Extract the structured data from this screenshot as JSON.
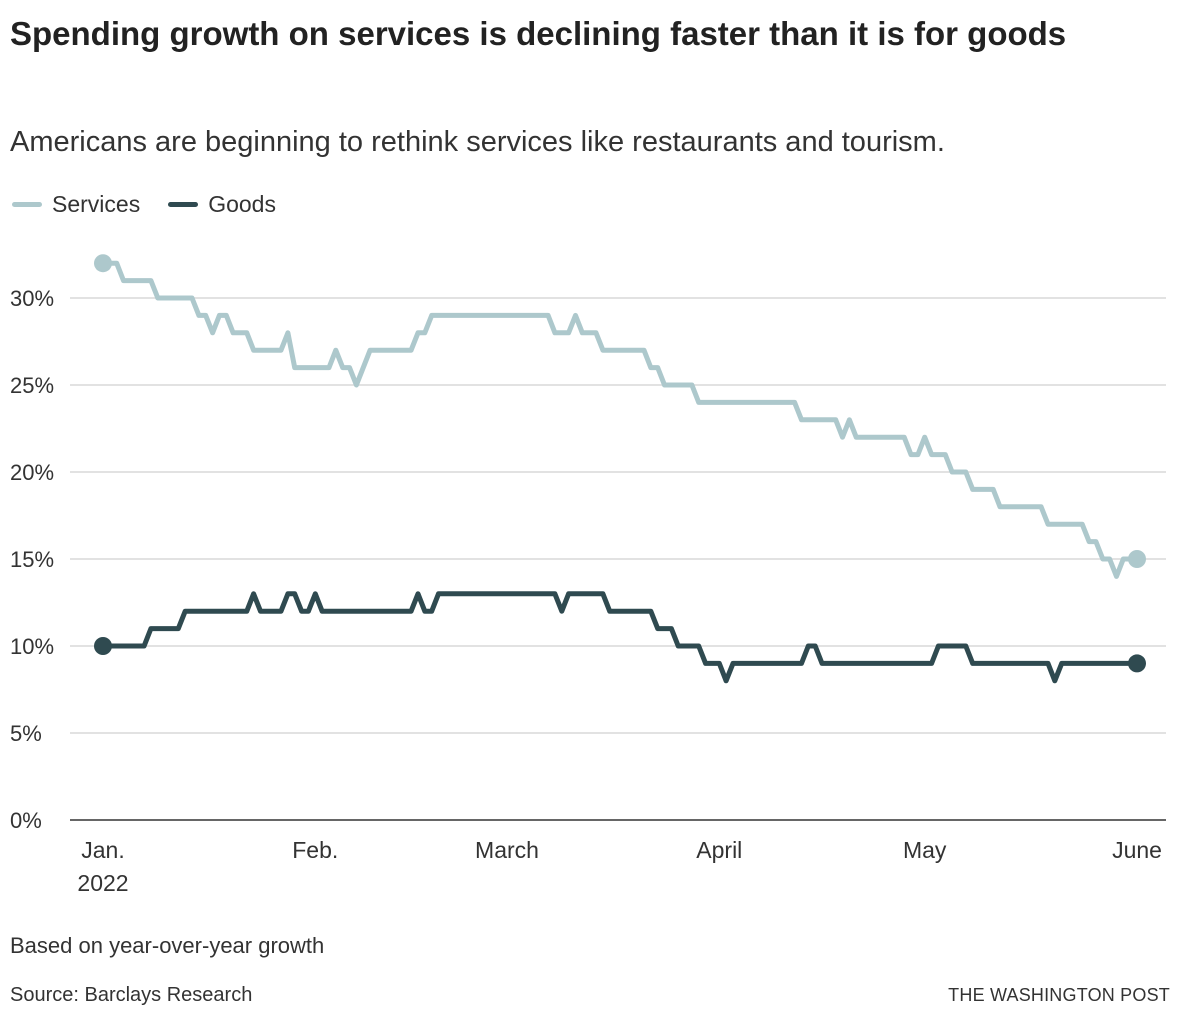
{
  "chart_data": {
    "type": "line",
    "title": "Spending growth on services is declining faster than it is for goods",
    "subtitle": "Americans are beginning to rethink services like restaurants and tourism.",
    "xlim": [
      "2022-01-01",
      "2022-06-01"
    ],
    "ylim": [
      0,
      33
    ],
    "y_ticks": [
      0,
      5,
      10,
      15,
      20,
      25,
      30
    ],
    "y_tick_labels": [
      "0%",
      "5%",
      "10%",
      "15%",
      "20%",
      "25%",
      "30%"
    ],
    "x_ticks": [
      {
        "date": "2022-01-01",
        "label": "Jan.",
        "sublabel": "2022"
      },
      {
        "date": "2022-02-01",
        "label": "Feb."
      },
      {
        "date": "2022-03-01",
        "label": "March"
      },
      {
        "date": "2022-04-01",
        "label": "April"
      },
      {
        "date": "2022-05-01",
        "label": "May"
      },
      {
        "date": "2022-06-01",
        "label": "June"
      }
    ],
    "grid": "horizontal",
    "legend_position": "top-left",
    "series": [
      {
        "name": "Services",
        "color": "#adc8cc",
        "points": [
          [
            "2022-01-01",
            32
          ],
          [
            "2022-01-03",
            32
          ],
          [
            "2022-01-04",
            31
          ],
          [
            "2022-01-08",
            31
          ],
          [
            "2022-01-09",
            30
          ],
          [
            "2022-01-14",
            30
          ],
          [
            "2022-01-15",
            29
          ],
          [
            "2022-01-16",
            29
          ],
          [
            "2022-01-17",
            28
          ],
          [
            "2022-01-18",
            29
          ],
          [
            "2022-01-19",
            29
          ],
          [
            "2022-01-20",
            28
          ],
          [
            "2022-01-22",
            28
          ],
          [
            "2022-01-23",
            27
          ],
          [
            "2022-01-27",
            27
          ],
          [
            "2022-01-28",
            28
          ],
          [
            "2022-01-29",
            26
          ],
          [
            "2022-02-03",
            26
          ],
          [
            "2022-02-04",
            27
          ],
          [
            "2022-02-05",
            26
          ],
          [
            "2022-02-06",
            26
          ],
          [
            "2022-02-07",
            25
          ],
          [
            "2022-02-09",
            27
          ],
          [
            "2022-02-15",
            27
          ],
          [
            "2022-02-16",
            28
          ],
          [
            "2022-02-17",
            28
          ],
          [
            "2022-02-18",
            29
          ],
          [
            "2022-03-07",
            29
          ],
          [
            "2022-03-08",
            28
          ],
          [
            "2022-03-10",
            28
          ],
          [
            "2022-03-11",
            29
          ],
          [
            "2022-03-12",
            28
          ],
          [
            "2022-03-14",
            28
          ],
          [
            "2022-03-15",
            27
          ],
          [
            "2022-03-21",
            27
          ],
          [
            "2022-03-22",
            26
          ],
          [
            "2022-03-23",
            26
          ],
          [
            "2022-03-24",
            25
          ],
          [
            "2022-03-28",
            25
          ],
          [
            "2022-03-29",
            24
          ],
          [
            "2022-04-12",
            24
          ],
          [
            "2022-04-13",
            23
          ],
          [
            "2022-04-18",
            23
          ],
          [
            "2022-04-19",
            22
          ],
          [
            "2022-04-20",
            23
          ],
          [
            "2022-04-21",
            22
          ],
          [
            "2022-04-28",
            22
          ],
          [
            "2022-04-29",
            21
          ],
          [
            "2022-04-30",
            21
          ],
          [
            "2022-05-01",
            22
          ],
          [
            "2022-05-02",
            21
          ],
          [
            "2022-05-04",
            21
          ],
          [
            "2022-05-05",
            20
          ],
          [
            "2022-05-07",
            20
          ],
          [
            "2022-05-08",
            19
          ],
          [
            "2022-05-11",
            19
          ],
          [
            "2022-05-12",
            18
          ],
          [
            "2022-05-18",
            18
          ],
          [
            "2022-05-19",
            17
          ],
          [
            "2022-05-24",
            17
          ],
          [
            "2022-05-25",
            16
          ],
          [
            "2022-05-26",
            16
          ],
          [
            "2022-05-27",
            15
          ],
          [
            "2022-05-28",
            15
          ],
          [
            "2022-05-29",
            14
          ],
          [
            "2022-05-30",
            15
          ],
          [
            "2022-06-01",
            15
          ]
        ]
      },
      {
        "name": "Goods",
        "color": "#2f4a50",
        "points": [
          [
            "2022-01-01",
            10
          ],
          [
            "2022-01-07",
            10
          ],
          [
            "2022-01-08",
            11
          ],
          [
            "2022-01-12",
            11
          ],
          [
            "2022-01-13",
            12
          ],
          [
            "2022-01-22",
            12
          ],
          [
            "2022-01-23",
            13
          ],
          [
            "2022-01-24",
            12
          ],
          [
            "2022-01-27",
            12
          ],
          [
            "2022-01-28",
            13
          ],
          [
            "2022-01-29",
            13
          ],
          [
            "2022-01-30",
            12
          ],
          [
            "2022-01-31",
            12
          ],
          [
            "2022-02-01",
            13
          ],
          [
            "2022-02-02",
            12
          ],
          [
            "2022-02-15",
            12
          ],
          [
            "2022-02-16",
            13
          ],
          [
            "2022-02-17",
            12
          ],
          [
            "2022-02-18",
            12
          ],
          [
            "2022-02-19",
            13
          ],
          [
            "2022-03-08",
            13
          ],
          [
            "2022-03-09",
            12
          ],
          [
            "2022-03-10",
            13
          ],
          [
            "2022-03-15",
            13
          ],
          [
            "2022-03-16",
            12
          ],
          [
            "2022-03-22",
            12
          ],
          [
            "2022-03-23",
            11
          ],
          [
            "2022-03-25",
            11
          ],
          [
            "2022-03-26",
            10
          ],
          [
            "2022-03-29",
            10
          ],
          [
            "2022-03-30",
            9
          ],
          [
            "2022-04-01",
            9
          ],
          [
            "2022-04-02",
            8
          ],
          [
            "2022-04-03",
            9
          ],
          [
            "2022-04-13",
            9
          ],
          [
            "2022-04-14",
            10
          ],
          [
            "2022-04-15",
            10
          ],
          [
            "2022-04-16",
            9
          ],
          [
            "2022-05-02",
            9
          ],
          [
            "2022-05-03",
            10
          ],
          [
            "2022-05-07",
            10
          ],
          [
            "2022-05-08",
            9
          ],
          [
            "2022-05-19",
            9
          ],
          [
            "2022-05-20",
            8
          ],
          [
            "2022-05-21",
            9
          ],
          [
            "2022-06-01",
            9
          ]
        ]
      }
    ]
  },
  "footer": {
    "note": "Based on year-over-year growth",
    "source": "Source: Barclays Research",
    "brand": "THE WASHINGTON POST"
  }
}
